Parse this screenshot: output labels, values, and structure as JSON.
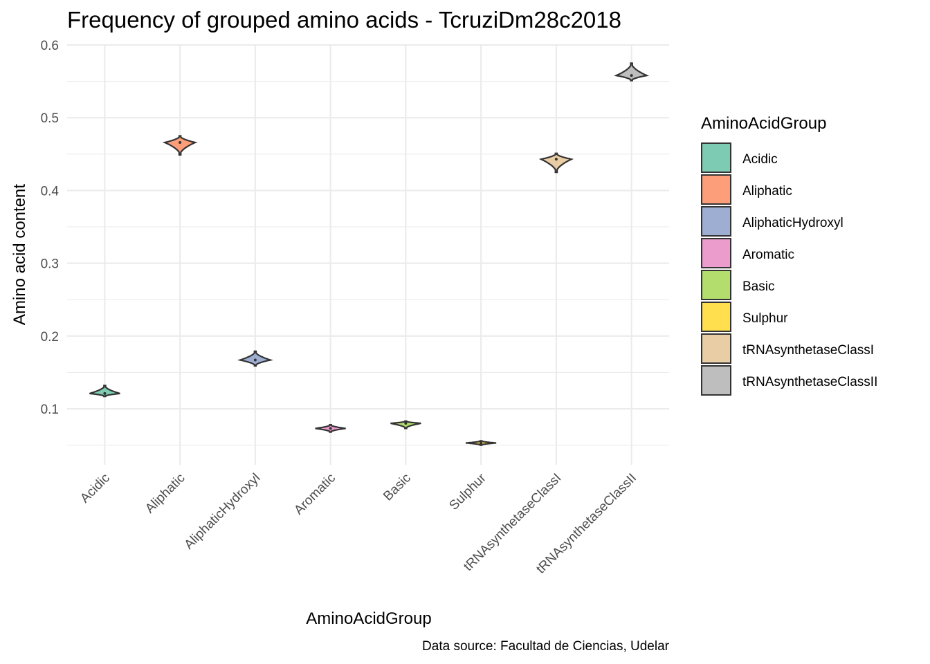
{
  "chart_data": {
    "type": "violin",
    "title": "Frequency of grouped amino acids - TcruziDm28c2018",
    "xlabel": "AminoAcidGroup",
    "ylabel": "Amino acid content",
    "caption": "Data source: Facultad de Ciencias, Udelar",
    "ylim": [
      0.025,
      0.6
    ],
    "yticks": [
      0.1,
      0.2,
      0.3,
      0.4,
      0.5,
      0.6
    ],
    "ytick_labels": [
      "0.1",
      "0.2",
      "0.3",
      "0.4",
      "0.5",
      "0.6"
    ],
    "grid": true,
    "legend": {
      "title": "AminoAcidGroup",
      "position": "right"
    },
    "categories": [
      "Acidic",
      "Aliphatic",
      "AliphaticHydroxyl",
      "Aromatic",
      "Basic",
      "Sulphur",
      "tRNAsynthetaseClassI",
      "tRNAsynthetaseClassII"
    ],
    "colors": [
      "#66c2a5",
      "#fc8d62",
      "#8da0cb",
      "#e78ac3",
      "#a6d854",
      "#ffd92f",
      "#e5c494",
      "#b3b3b3"
    ],
    "series": [
      {
        "name": "Acidic",
        "min": 0.117,
        "center": 0.121,
        "max": 0.132
      },
      {
        "name": "Aliphatic",
        "min": 0.449,
        "center": 0.466,
        "max": 0.475
      },
      {
        "name": "AliphaticHydroxyl",
        "min": 0.159,
        "center": 0.167,
        "max": 0.179
      },
      {
        "name": "Aromatic",
        "min": 0.068,
        "center": 0.073,
        "max": 0.078
      },
      {
        "name": "Basic",
        "min": 0.073,
        "center": 0.08,
        "max": 0.083
      },
      {
        "name": "Sulphur",
        "min": 0.05,
        "center": 0.053,
        "max": 0.056
      },
      {
        "name": "tRNAsynthetaseClassI",
        "min": 0.425,
        "center": 0.443,
        "max": 0.451
      },
      {
        "name": "tRNAsynthetaseClassII",
        "min": 0.551,
        "center": 0.558,
        "max": 0.575
      }
    ]
  }
}
